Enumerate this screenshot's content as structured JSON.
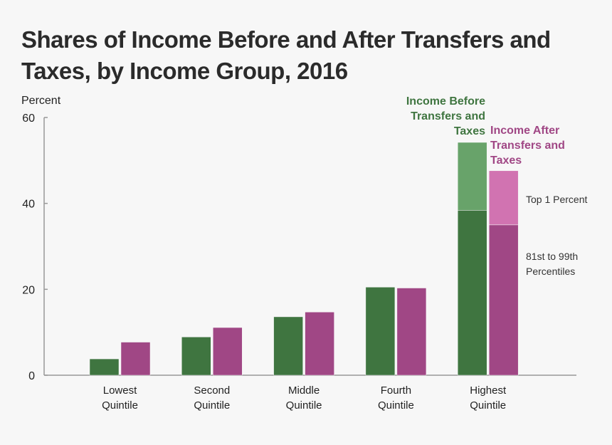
{
  "chart_data": {
    "type": "bar",
    "title": "Shares of Income Before and After Transfers and Taxes, by Income Group, 2016",
    "ylabel": "Percent",
    "ylim": [
      0,
      60
    ],
    "yticks": [
      0,
      20,
      40,
      60
    ],
    "grid": false,
    "categories": [
      [
        "Lowest",
        "Quintile"
      ],
      [
        "Second",
        "Quintile"
      ],
      [
        "Middle",
        "Quintile"
      ],
      [
        "Fourth",
        "Quintile"
      ],
      [
        "Highest",
        "Quintile"
      ]
    ],
    "series": [
      {
        "name": "Income Before Transfers and Taxes",
        "name_lines": [
          "Income Before",
          "Transfers and",
          "Taxes"
        ],
        "color": "#3f7540",
        "light_color": "#68a36a",
        "values": [
          3.8,
          8.9,
          13.6,
          20.5,
          38.4
        ],
        "top_segment_highest": 15.8
      },
      {
        "name": "Income After Transfers and Taxes",
        "name_lines": [
          "Income After",
          "Transfers and",
          "Taxes"
        ],
        "color": "#a04785",
        "light_color": "#d173b1",
        "values": [
          7.7,
          11.1,
          14.7,
          20.3,
          35.0
        ],
        "top_segment_highest": 12.6
      }
    ],
    "annotations": {
      "top": "Top 1 Percent",
      "lower": [
        "81st to 99th",
        "Percentiles"
      ]
    }
  }
}
